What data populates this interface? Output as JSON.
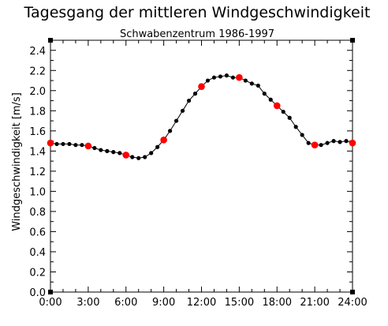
{
  "chart_data": {
    "type": "line",
    "title": "Tagesgang der mittleren Windgeschwindigkeit",
    "subtitle": "Schwabenzentrum 1986-1997",
    "xlabel": "",
    "ylabel": "Windgeschwindigkeit   [m/s]",
    "xlim": [
      0,
      24
    ],
    "ylim": [
      0,
      2.5
    ],
    "x_ticks": [
      "0:00",
      "3:00",
      "6:00",
      "9:00",
      "12:00",
      "15:00",
      "18:00",
      "21:00",
      "24:00"
    ],
    "y_ticks": [
      "0.0",
      "0.2",
      "0.4",
      "0.6",
      "0.8",
      "1.0",
      "1.2",
      "1.4",
      "1.6",
      "1.8",
      "2.0",
      "2.2",
      "2.4"
    ],
    "grid": false,
    "series": [
      {
        "color": "#000000",
        "x": [
          0,
          0.5,
          1,
          1.5,
          2,
          2.5,
          3,
          3.5,
          4,
          4.5,
          5,
          5.5,
          6,
          6.5,
          7,
          7.5,
          8,
          8.5,
          9,
          9.5,
          10,
          10.5,
          11,
          11.5,
          12,
          12.5,
          13,
          13.5,
          14,
          14.5,
          15,
          15.5,
          16,
          16.5,
          17,
          17.5,
          18,
          18.5,
          19,
          19.5,
          20,
          20.5,
          21,
          21.5,
          22,
          22.5,
          23,
          23.5,
          24
        ],
        "y": [
          1.48,
          1.47,
          1.47,
          1.47,
          1.46,
          1.46,
          1.45,
          1.43,
          1.41,
          1.4,
          1.39,
          1.38,
          1.36,
          1.34,
          1.33,
          1.34,
          1.38,
          1.44,
          1.51,
          1.6,
          1.7,
          1.8,
          1.9,
          1.97,
          2.04,
          2.1,
          2.13,
          2.14,
          2.15,
          2.13,
          2.13,
          2.1,
          2.07,
          2.05,
          1.97,
          1.91,
          1.85,
          1.79,
          1.73,
          1.64,
          1.56,
          1.48,
          1.46,
          1.46,
          1.48,
          1.5,
          1.49,
          1.5,
          1.48
        ]
      },
      {
        "color": "#ff0000",
        "x": [
          0,
          3,
          6,
          9,
          12,
          15,
          18,
          21,
          24
        ],
        "y": [
          1.48,
          1.45,
          1.36,
          1.51,
          2.04,
          2.13,
          1.85,
          1.46,
          1.48
        ]
      }
    ]
  }
}
